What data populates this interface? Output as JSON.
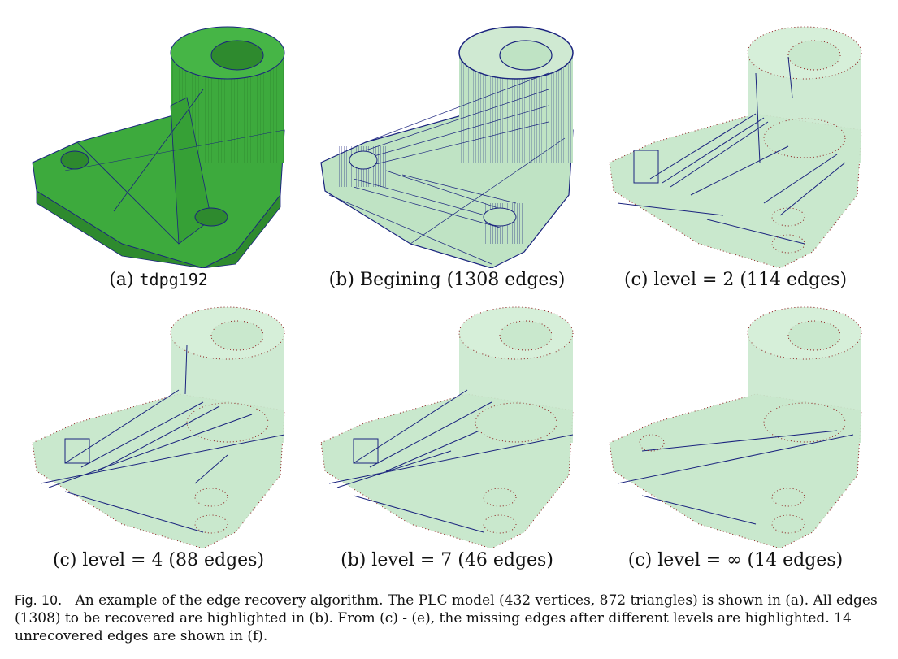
{
  "panels": [
    {
      "label_prefix": "(a) ",
      "label_main": "tdpg192",
      "label_suffix": ""
    },
    {
      "label_prefix": "(b) Begining (",
      "label_main": "1308",
      "label_suffix": " edges)"
    },
    {
      "label_prefix": "(c) level = 2 (",
      "label_main": "114",
      "label_suffix": " edges)"
    },
    {
      "label_prefix": "(c) level = 4 (",
      "label_main": "88",
      "label_suffix": " edges)"
    },
    {
      "label_prefix": "(b) level = 7 (",
      "label_main": "46",
      "label_suffix": " edges)"
    },
    {
      "label_prefix": "(c) level = ∞ (",
      "label_main": "14",
      "label_suffix": " edges)"
    }
  ],
  "caption": {
    "fig_label": "Fig. 10.",
    "text": "An example of the edge recovery algorithm. The PLC model (432 vertices, 872 triangles) is shown in (a). All edges (1308) to be recovered are highlighted in (b). From (c) - (e), the missing edges after different levels are highlighted. 14 unrecovered edges are shown in (f)."
  },
  "colors": {
    "solid_green": "#3daa3d",
    "solid_green_dark": "#2e8a2e",
    "mesh_blue": "#1a237e",
    "transparent_green": "#bfe3c4",
    "dot_red": "#8b1a1a"
  }
}
